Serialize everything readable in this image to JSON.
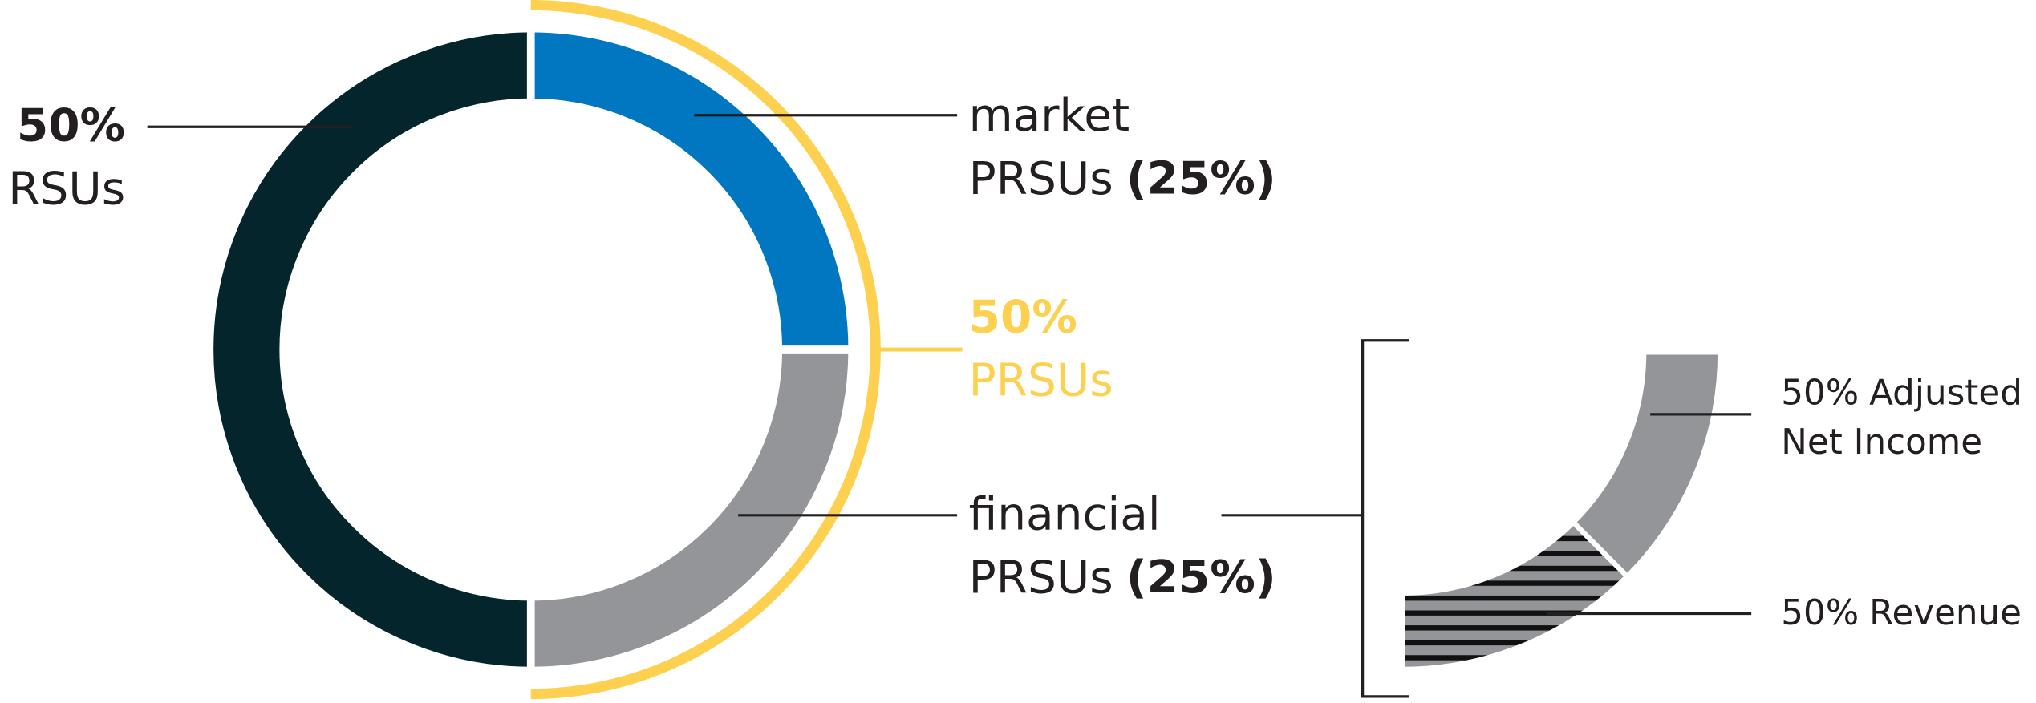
{
  "chart_data": {
    "type": "donut",
    "categories": [
      "market PRSUs",
      "financial PRSUs",
      "RSUs"
    ],
    "values": [
      25,
      25,
      50
    ],
    "value_labels": [
      "(25%)",
      "(25%)",
      "50%"
    ],
    "colors": [
      "#0077c0",
      "#939598",
      "#05252c"
    ],
    "group": {
      "name": "PRSUs",
      "value": 50,
      "value_label": "50%",
      "color": "#fdd04f"
    },
    "breakdown": {
      "categories": [
        "Adjusted Net Income",
        "Revenue"
      ],
      "values": [
        50,
        50
      ],
      "value_labels": [
        "50%",
        "50%"
      ],
      "fills": [
        "solid",
        "striped"
      ],
      "color": "#939598"
    }
  }
}
